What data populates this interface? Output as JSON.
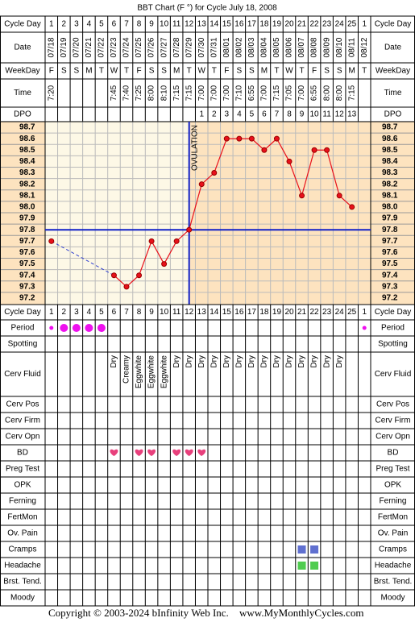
{
  "title": "BBT Chart (F °) for Cycle July 18, 2008",
  "row_labels": {
    "cycle_day": "Cycle Day",
    "date": "Date",
    "weekday": "WeekDay",
    "time": "Time",
    "dpo": "DPO"
  },
  "cycle_days": [
    1,
    2,
    3,
    4,
    5,
    6,
    7,
    8,
    9,
    10,
    11,
    12,
    13,
    14,
    15,
    16,
    17,
    18,
    19,
    20,
    21,
    22,
    23,
    24,
    25,
    1
  ],
  "dates": [
    "07/18",
    "07/19",
    "07/20",
    "07/21",
    "07/22",
    "07/23",
    "07/24",
    "07/25",
    "07/26",
    "07/27",
    "07/28",
    "07/29",
    "07/30",
    "07/31",
    "08/01",
    "08/02",
    "08/03",
    "08/04",
    "08/05",
    "08/06",
    "08/07",
    "08/08",
    "08/09",
    "08/10",
    "08/11",
    "08/12"
  ],
  "weekdays": [
    "F",
    "S",
    "S",
    "M",
    "T",
    "W",
    "T",
    "F",
    "S",
    "S",
    "M",
    "T",
    "W",
    "T",
    "F",
    "S",
    "S",
    "M",
    "T",
    "W",
    "T",
    "F",
    "S",
    "S",
    "M",
    "T"
  ],
  "times": [
    "7:20",
    null,
    null,
    null,
    null,
    "7:45",
    "7:40",
    "7:25",
    "8:00",
    "8:10",
    "7:15",
    "7:15",
    "7:00",
    "7:00",
    "7:00",
    "7:10",
    "6:55",
    "7:00",
    "7:15",
    "7:05",
    "7:00",
    "6:55",
    "8:00",
    "8:00",
    "7:15",
    null
  ],
  "dpo": [
    null,
    null,
    null,
    null,
    null,
    null,
    null,
    null,
    null,
    null,
    null,
    null,
    1,
    2,
    3,
    4,
    5,
    6,
    7,
    8,
    9,
    10,
    11,
    12,
    13,
    null
  ],
  "chart_data": {
    "type": "line",
    "values": [
      97.7,
      null,
      null,
      null,
      null,
      97.4,
      97.3,
      97.4,
      97.7,
      97.5,
      97.7,
      97.8,
      98.2,
      98.3,
      98.6,
      98.6,
      98.6,
      98.5,
      98.6,
      98.4,
      98.1,
      98.5,
      98.5,
      98.1,
      98.0,
      null
    ],
    "ylim": [
      97.2,
      98.7
    ],
    "yticks": [
      98.7,
      98.6,
      98.5,
      98.4,
      98.3,
      98.2,
      98.1,
      {
        "value": 98,
        "label": "98.0"
      },
      97.9,
      97.8,
      97.7,
      97.6,
      97.5,
      97.4,
      97.3,
      97.2
    ],
    "color": "#e8101a",
    "coverline": 97.8,
    "coverline_color": "#1020c8",
    "ovulation": {
      "label": "OVULATION",
      "day": 12
    }
  },
  "observations": [
    {
      "label": "Period",
      "flow": [
        "light",
        "heavy",
        "heavy",
        "heavy",
        "heavy",
        null,
        null,
        null,
        null,
        null,
        null,
        null,
        null,
        null,
        null,
        null,
        null,
        null,
        null,
        null,
        null,
        null,
        null,
        null,
        null,
        "light"
      ],
      "color": "#ee10ee"
    },
    {
      "label": "Spotting"
    },
    {
      "label": "Cerv Fluid",
      "entries": [
        null,
        null,
        null,
        null,
        null,
        "Dry",
        "Creamy",
        "Eggwhite",
        "Eggwhite",
        "Eggwhite",
        "Dry",
        "Dry",
        "Dry",
        "Dry",
        "Dry",
        "Dry",
        "Dry",
        "Dry",
        "Dry",
        "Dry",
        "Dry",
        "Dry",
        "Dry",
        "Dry",
        null,
        null
      ]
    },
    {
      "label": "Cerv Pos"
    },
    {
      "label": "Cerv Firm"
    },
    {
      "label": "Cerv Opn"
    },
    {
      "label": "BD",
      "days": [
        6,
        8,
        9,
        11,
        12,
        13
      ],
      "color": "#e8407c",
      "shape": "heart"
    },
    {
      "label": "Preg Test"
    },
    {
      "label": "OPK"
    },
    {
      "label": "Ferning"
    },
    {
      "label": "FertMon"
    },
    {
      "label": "Ov. Pain"
    },
    {
      "label": "Cramps",
      "days": [
        21,
        22
      ],
      "color": "#6070d0",
      "shape": "square"
    },
    {
      "label": "Headache",
      "days": [
        21,
        22
      ],
      "color": "#50cc50",
      "shape": "square"
    },
    {
      "label": "Brst. Tend."
    },
    {
      "label": "Moody"
    }
  ],
  "footer": {
    "copyright": "Copyright © 2003-2024 bInfinity Web Inc.",
    "site": "www.MyMonthlyCycles.com"
  }
}
